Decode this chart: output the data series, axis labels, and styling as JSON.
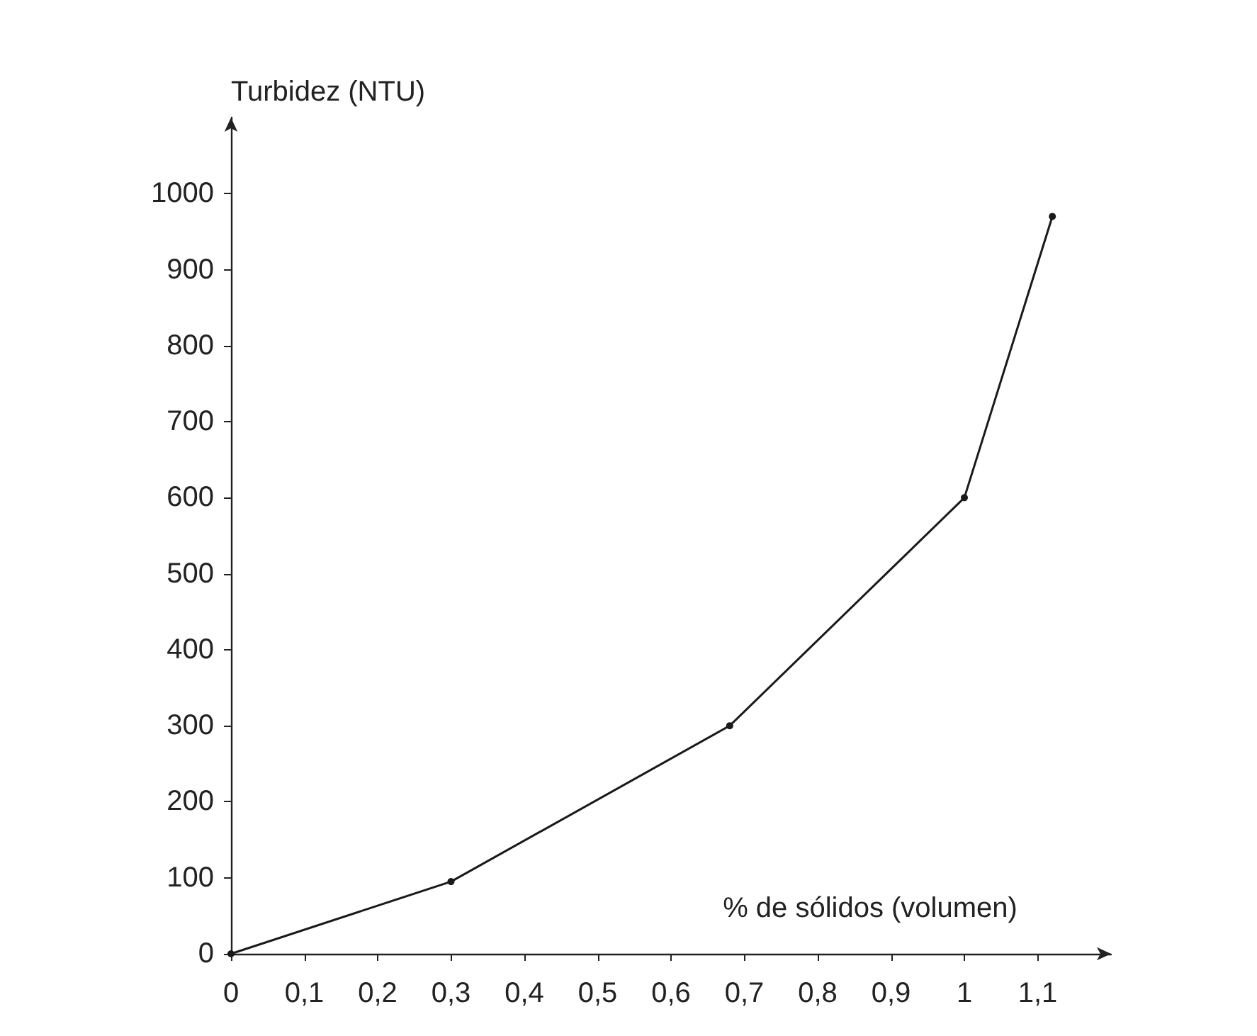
{
  "chart_data": {
    "type": "line",
    "xlabel": "% de sólidos (volumen)",
    "ylabel": "Turbidez (NTU)",
    "x": [
      0,
      0.3,
      0.68,
      1.0,
      1.12
    ],
    "series": [
      {
        "color": "#1a1a1a",
        "values": [
          0,
          95,
          300,
          600,
          970
        ]
      }
    ],
    "xlim": [
      0,
      1.2
    ],
    "ylim": [
      0,
      1100
    ],
    "xticks": [
      0,
      {
        "value": 0.1,
        "label": "0,1"
      },
      {
        "value": 0.2,
        "label": "0,2"
      },
      {
        "value": 0.3,
        "label": "0,3"
      },
      {
        "value": 0.4,
        "label": "0,4"
      },
      {
        "value": 0.5,
        "label": "0,5"
      },
      {
        "value": 0.6,
        "label": "0,6"
      },
      {
        "value": 0.7,
        "label": "0,7"
      },
      {
        "value": 0.8,
        "label": "0,8"
      },
      {
        "value": 0.9,
        "label": "0,9"
      },
      1,
      {
        "value": 1.1,
        "label": "1,1"
      }
    ],
    "yticks": [
      0,
      100,
      200,
      300,
      400,
      500,
      600,
      700,
      800,
      900,
      1000
    ],
    "grid": false,
    "marker": "circle",
    "line_style": "solid"
  }
}
